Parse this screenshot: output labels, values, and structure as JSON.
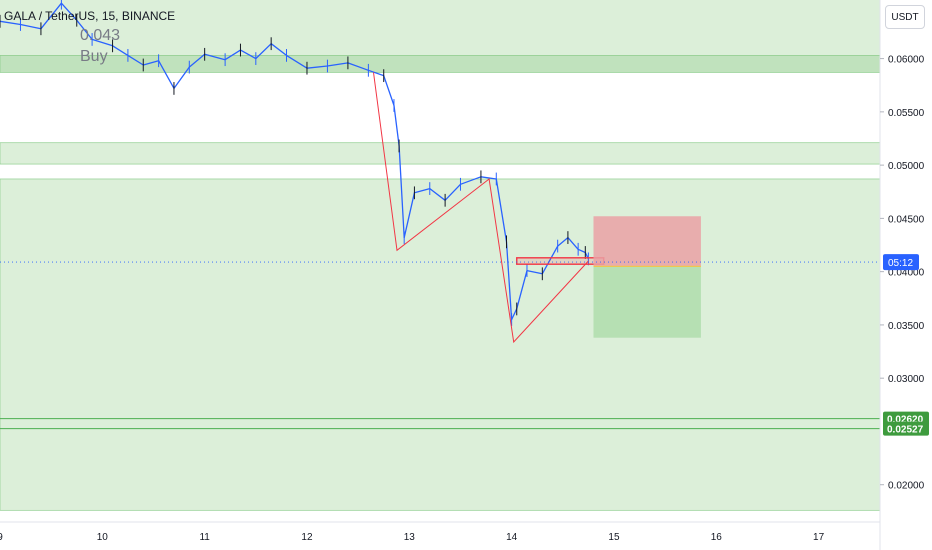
{
  "header": {
    "symbol": "GALA / TetherUS, 15, BINANCE",
    "legend_value": "0.043",
    "legend_note": "Buy"
  },
  "currency_button": "USDT",
  "colors": {
    "zone_fill": "#dcefd9",
    "zone_dark": "#c0e2bd",
    "zone_line": "#7fc77f",
    "pattern_line": "#f23645",
    "candle": "#2962ff",
    "candle_dark": "#131722",
    "stop_fill": "#eaa1a4",
    "target_fill": "#b6e0b3",
    "support_line": "#4caf50",
    "price_badge": "#2962ff",
    "support_badge": "#3e9b3e"
  },
  "chart_data": {
    "type": "line",
    "title": "",
    "symbol": "GALA / TetherUS, 15, BINANCE",
    "x_axis": {
      "range": [
        9,
        17.6
      ],
      "ticks": [
        "9",
        "10",
        "11",
        "12",
        "13",
        "14",
        "15",
        "16",
        "17"
      ]
    },
    "y_axis": {
      "range": [
        0.0165,
        0.0655
      ],
      "ticks": [
        "0.06000",
        "0.05500",
        "0.05000",
        "0.04500",
        "0.04000",
        "0.03500",
        "0.03000",
        "0.02000"
      ]
    },
    "price_path": [
      [
        9.0,
        0.0635
      ],
      [
        9.2,
        0.0632
      ],
      [
        9.4,
        0.0628
      ],
      [
        9.6,
        0.0652
      ],
      [
        9.75,
        0.0636
      ],
      [
        9.9,
        0.0618
      ],
      [
        10.1,
        0.0612
      ],
      [
        10.25,
        0.0603
      ],
      [
        10.4,
        0.0594
      ],
      [
        10.55,
        0.0598
      ],
      [
        10.7,
        0.0572
      ],
      [
        10.85,
        0.0592
      ],
      [
        11.0,
        0.0604
      ],
      [
        11.2,
        0.0599
      ],
      [
        11.35,
        0.0608
      ],
      [
        11.5,
        0.06
      ],
      [
        11.65,
        0.0614
      ],
      [
        11.8,
        0.0603
      ],
      [
        12.0,
        0.0591
      ],
      [
        12.2,
        0.0593
      ],
      [
        12.4,
        0.0596
      ],
      [
        12.6,
        0.0589
      ],
      [
        12.75,
        0.0584
      ],
      [
        12.85,
        0.0556
      ],
      [
        12.9,
        0.0518
      ],
      [
        12.95,
        0.0432
      ],
      [
        13.05,
        0.0474
      ],
      [
        13.2,
        0.0478
      ],
      [
        13.35,
        0.0467
      ],
      [
        13.5,
        0.0482
      ],
      [
        13.7,
        0.0489
      ],
      [
        13.85,
        0.0487
      ],
      [
        13.95,
        0.0428
      ],
      [
        14.0,
        0.0355
      ],
      [
        14.05,
        0.0365
      ],
      [
        14.15,
        0.0401
      ],
      [
        14.3,
        0.0398
      ],
      [
        14.45,
        0.0424
      ],
      [
        14.55,
        0.0432
      ],
      [
        14.65,
        0.0421
      ],
      [
        14.72,
        0.0418
      ],
      [
        14.75,
        0.0412
      ]
    ],
    "pattern_points": [
      [
        12.65,
        0.0587
      ],
      [
        12.88,
        0.042
      ],
      [
        13.78,
        0.0487
      ],
      [
        14.02,
        0.0334
      ],
      [
        14.75,
        0.041
      ]
    ],
    "zones": [
      {
        "from": 0.0603,
        "to": 0.0587
      },
      {
        "from": 0.0521,
        "to": 0.0501
      },
      {
        "from": 0.0487,
        "to": 0.0176
      }
    ],
    "upper_zone_from": 0.0655,
    "position": {
      "x_start": 14.8,
      "x_end": 15.85,
      "entry": 0.0405,
      "stop": 0.0452,
      "target": 0.0338
    },
    "entry_box": {
      "x_start": 14.05,
      "x_end": 14.9,
      "low": 0.0407,
      "high": 0.0413
    },
    "current_price": {
      "value": 0.0409,
      "label": "05:12"
    },
    "support_lines": [
      {
        "value": 0.0262,
        "label": "0.02620"
      },
      {
        "value": 0.02527,
        "label": "0.02527"
      }
    ]
  }
}
